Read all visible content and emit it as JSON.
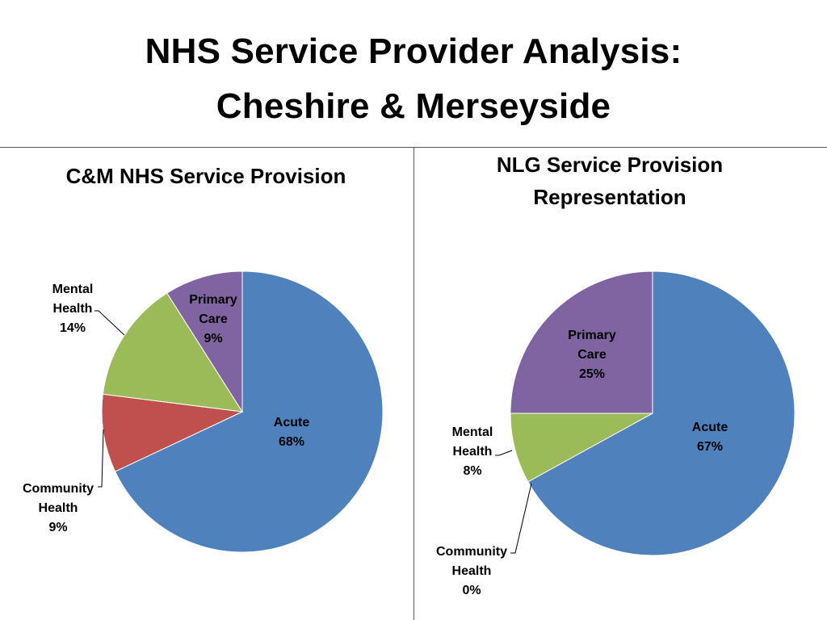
{
  "slide": {
    "title_line1": "NHS Service Provider Analysis:",
    "title_line2": "Cheshire & Merseyside"
  },
  "chart_data": [
    {
      "type": "pie",
      "title": "C&M NHS Service Provision",
      "slices": [
        {
          "category": "Acute",
          "label": [
            "Acute",
            "68%"
          ],
          "value": 68,
          "color": "#4F81BD"
        },
        {
          "category": "Community Health",
          "label": [
            "Community",
            "Health",
            "9%"
          ],
          "value": 9,
          "color": "#C0504D"
        },
        {
          "category": "Mental Health",
          "label": [
            "Mental",
            "Health",
            "14%"
          ],
          "value": 14,
          "color": "#9BBB59"
        },
        {
          "category": "Primary Care",
          "label": [
            "Primary",
            "Care",
            "9%"
          ],
          "value": 9,
          "color": "#8064A2"
        }
      ]
    },
    {
      "type": "pie",
      "title_line1": "NLG Service Provision",
      "title_line2": "Representation",
      "slices": [
        {
          "category": "Acute",
          "label": [
            "Acute",
            "67%"
          ],
          "value": 67,
          "color": "#4F81BD"
        },
        {
          "category": "Community Health",
          "label": [
            "Community",
            "Health",
            "0%"
          ],
          "value": 0,
          "color": "#C0504D"
        },
        {
          "category": "Mental Health",
          "label": [
            "Mental",
            "Health",
            "8%"
          ],
          "value": 8,
          "color": "#9BBB59"
        },
        {
          "category": "Primary Care",
          "label": [
            "Primary",
            "Care",
            "25%"
          ],
          "value": 25,
          "color": "#8064A2"
        }
      ]
    }
  ]
}
